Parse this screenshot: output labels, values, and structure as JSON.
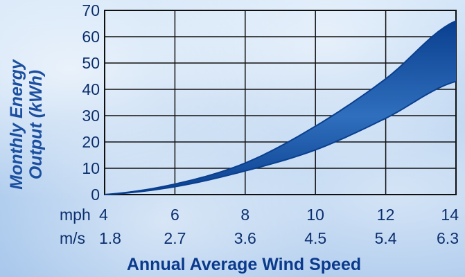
{
  "chart_data": {
    "type": "area",
    "title": "",
    "ylabel_line1": "Monthly Energy",
    "ylabel_line2": "Output (kWh)",
    "xlabel": "Annual Average Wind Speed",
    "xunit_primary": "mph",
    "xunit_secondary": "m/s",
    "x": [
      4,
      6,
      8,
      10,
      12,
      14
    ],
    "x_secondary_labels": [
      "1.8",
      "2.7",
      "3.6",
      "4.5",
      "5.4",
      "6.3"
    ],
    "xlim": [
      4,
      14
    ],
    "ylim": [
      0,
      70
    ],
    "yticks": [
      0,
      10,
      20,
      30,
      40,
      50,
      60,
      70
    ],
    "grid": true,
    "series": [
      {
        "values": [
          0,
          4,
          12,
          26,
          44,
          66
        ]
      },
      {
        "values": [
          0,
          3,
          9,
          17,
          29,
          43
        ]
      }
    ],
    "colors": {
      "band_dark": "#0a3f8f",
      "band_light": "#ffffff",
      "grid": "#111111",
      "text": "#0b2f6e",
      "title": "#0b3a8c"
    }
  }
}
